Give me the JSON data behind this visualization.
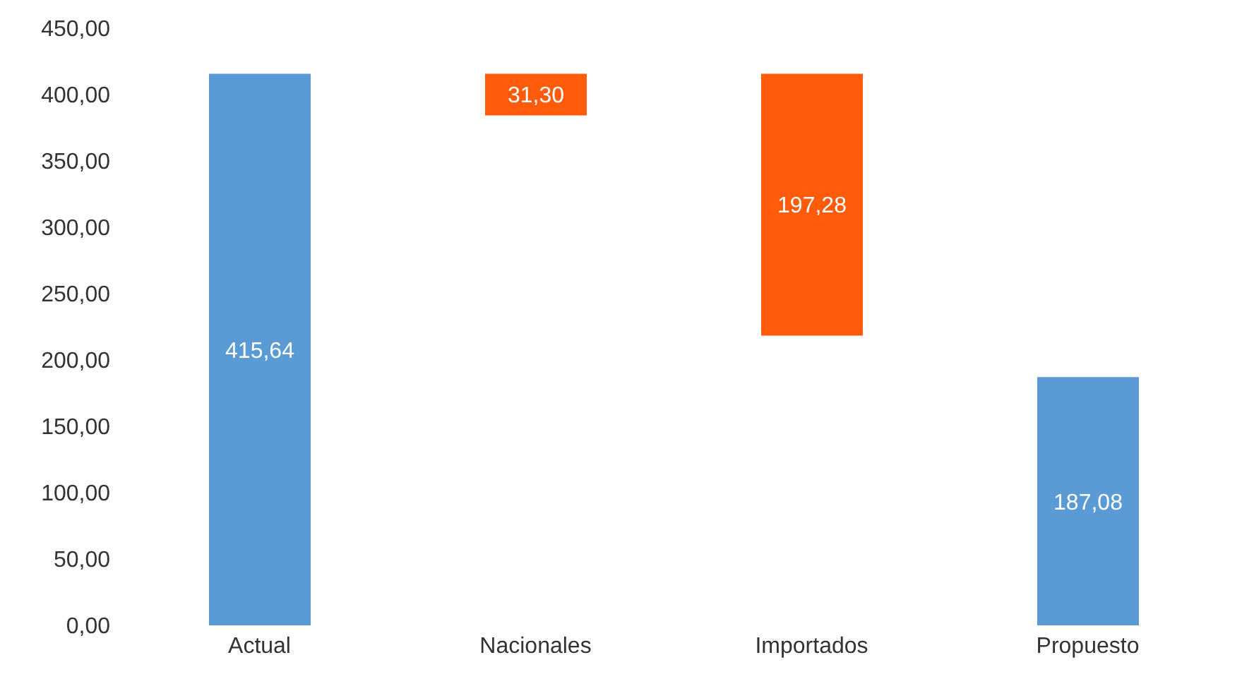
{
  "chart_data": {
    "type": "bar",
    "categories": [
      "Actual",
      "Nacionales",
      "Importados",
      "Propuesto"
    ],
    "values": [
      415.64,
      31.3,
      197.28,
      187.08
    ],
    "base": [
      0,
      384.34,
      218.36,
      0
    ],
    "colors": [
      "#5b9bd5",
      "#ff5b0a",
      "#ff5b0a",
      "#5b9bd5"
    ],
    "value_labels": [
      "415,64",
      "31,30",
      "197,28",
      "187,08"
    ],
    "ylim": [
      0,
      450
    ],
    "yticks": [
      {
        "value": 0,
        "label": "0,00"
      },
      {
        "value": 50,
        "label": "50,00"
      },
      {
        "value": 100,
        "label": "100,00"
      },
      {
        "value": 150,
        "label": "150,00"
      },
      {
        "value": 200,
        "label": "200,00"
      },
      {
        "value": 250,
        "label": "250,00"
      },
      {
        "value": 300,
        "label": "300,00"
      },
      {
        "value": 350,
        "label": "350,00"
      },
      {
        "value": 400,
        "label": "400,00"
      },
      {
        "value": 450,
        "label": "450,00"
      }
    ],
    "grid": false,
    "legend": false
  }
}
